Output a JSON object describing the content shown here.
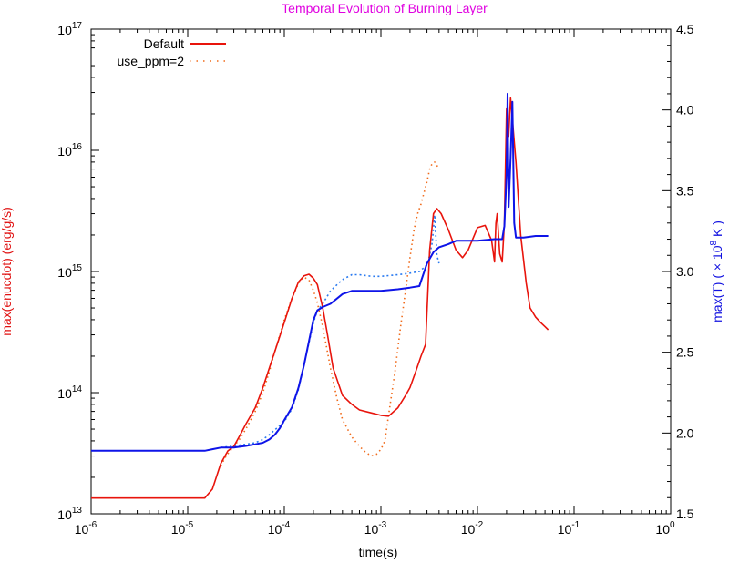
{
  "chart_data": {
    "type": "line",
    "title": "Temporal Evolution of Burning Layer",
    "xlabel": "time(s)",
    "ylabel": "max(enucdot) (erg/g/s)",
    "y2label_main": "max(T) ( × 10",
    "y2label_exp": "8",
    "y2label_tail": " K )",
    "xscale": "log",
    "yscale": "log",
    "xlim": [
      1e-06,
      1
    ],
    "ylim": [
      10000000000000.0,
      1e+17
    ],
    "y2lim": [
      1.5,
      4.5
    ],
    "x_ticks": [
      {
        "base": "10",
        "exp": "-6",
        "v": -6
      },
      {
        "base": "10",
        "exp": "-5",
        "v": -5
      },
      {
        "base": "10",
        "exp": "-4",
        "v": -4
      },
      {
        "base": "10",
        "exp": "-3",
        "v": -3
      },
      {
        "base": "10",
        "exp": "-2",
        "v": -2
      },
      {
        "base": "10",
        "exp": "-1",
        "v": -1
      },
      {
        "base": "10",
        "exp": "0",
        "v": 0
      }
    ],
    "y_ticks": [
      {
        "base": "10",
        "exp": "13",
        "v": 13
      },
      {
        "base": "10",
        "exp": "14",
        "v": 14
      },
      {
        "base": "10",
        "exp": "15",
        "v": 15
      },
      {
        "base": "10",
        "exp": "16",
        "v": 16
      },
      {
        "base": "10",
        "exp": "17",
        "v": 17
      }
    ],
    "y2_ticks": [
      "1.5",
      "2.0",
      "2.5",
      "3.0",
      "3.5",
      "4.0",
      "4.5"
    ],
    "legend": {
      "placement": "top-left",
      "entries": [
        {
          "label": "Default",
          "style": "solid",
          "color": "#e8140c"
        },
        {
          "label": "use_ppm=2",
          "style": "dotted",
          "color": "#f06a1a"
        }
      ]
    },
    "colors": {
      "title": "#e000e0",
      "ylabel": "#e01010",
      "y2label": "#1010e0",
      "enuc_default": "#e8140c",
      "enuc_ppm": "#f06a1a",
      "temp_default": "#0e14e8",
      "temp_ppm": "#2a7af0"
    },
    "series": [
      {
        "name": "Default",
        "quantity": "max(enucdot)",
        "axis": "left",
        "x": [
          1e-06,
          5e-06,
          1.5e-05,
          1.8e-05,
          2.2e-05,
          2.6e-05,
          3e-05,
          3.5e-05,
          4e-05,
          5e-05,
          6e-05,
          7e-05,
          8e-05,
          0.0001,
          0.00012,
          0.00014,
          0.00016,
          0.00018,
          0.0002,
          0.00022,
          0.00025,
          0.00028,
          0.00032,
          0.0004,
          0.0005,
          0.0006,
          0.0008,
          0.001,
          0.0012,
          0.0015,
          0.0018,
          0.002,
          0.0023,
          0.0026,
          0.0029,
          0.0032,
          0.0035,
          0.0038,
          0.0042,
          0.005,
          0.006,
          0.007,
          0.008,
          0.01,
          0.012,
          0.014,
          0.015,
          0.0155,
          0.016,
          0.017,
          0.018,
          0.019,
          0.02,
          0.021,
          0.022,
          0.023,
          0.025,
          0.028,
          0.032,
          0.035,
          0.04,
          0.045,
          0.05,
          0.054
        ],
        "y": [
          13500000000000.0,
          13500000000000.0,
          13500000000000.0,
          16000000000000.0,
          26000000000000.0,
          33000000000000.0,
          36000000000000.0,
          45000000000000.0,
          55000000000000.0,
          75000000000000.0,
          110000000000000.0,
          160000000000000.0,
          220000000000000.0,
          380000000000000.0,
          600000000000000.0,
          820000000000000.0,
          920000000000000.0,
          950000000000000.0,
          880000000000000.0,
          780000000000000.0,
          500000000000000.0,
          300000000000000.0,
          160000000000000.0,
          95000000000000.0,
          80000000000000.0,
          72000000000000.0,
          68000000000000.0,
          65000000000000.0,
          64000000000000.0,
          75000000000000.0,
          95000000000000.0,
          110000000000000.0,
          150000000000000.0,
          200000000000000.0,
          250000000000000.0,
          1500000000000000.0,
          3000000000000000.0,
          3300000000000000.0,
          3000000000000000.0,
          2200000000000000.0,
          1500000000000000.0,
          1300000000000000.0,
          1500000000000000.0,
          2300000000000000.0,
          2400000000000000.0,
          1800000000000000.0,
          1200000000000000.0,
          2500000000000000.0,
          3000000000000000.0,
          1400000000000000.0,
          1200000000000000.0,
          2500000000000000.0,
          2.2e+16,
          1.3e+16,
          2.7e+16,
          1.8e+16,
          8000000000000000.0,
          2000000000000000.0,
          800000000000000.0,
          500000000000000.0,
          420000000000000.0,
          380000000000000.0,
          350000000000000.0,
          330000000000000.0
        ]
      },
      {
        "name": "use_ppm=2",
        "quantity": "max(enucdot)",
        "axis": "left",
        "x": [
          2.2e-05,
          2.5e-05,
          3e-05,
          3.5e-05,
          4e-05,
          5e-05,
          6e-05,
          7e-05,
          8e-05,
          0.0001,
          0.00012,
          0.00014,
          0.00016,
          0.00018,
          0.0002,
          0.00022,
          0.00025,
          0.0003,
          0.00035,
          0.0004,
          0.0005,
          0.0006,
          0.0007,
          0.0008,
          0.0009,
          0.001,
          0.0011,
          0.0012,
          0.0014,
          0.0016,
          0.0018,
          0.002,
          0.0022,
          0.0024,
          0.0026,
          0.0028,
          0.003,
          0.0032,
          0.0034,
          0.0036,
          0.0038,
          0.004
        ],
        "y": [
          25000000000000.0,
          30000000000000.0,
          36000000000000.0,
          42000000000000.0,
          50000000000000.0,
          70000000000000.0,
          100000000000000.0,
          150000000000000.0,
          220000000000000.0,
          400000000000000.0,
          600000000000000.0,
          800000000000000.0,
          900000000000000.0,
          850000000000000.0,
          700000000000000.0,
          550000000000000.0,
          350000000000000.0,
          160000000000000.0,
          90000000000000.0,
          60000000000000.0,
          43000000000000.0,
          36000000000000.0,
          32000000000000.0,
          30000000000000.0,
          31000000000000.0,
          34000000000000.0,
          40000000000000.0,
          65000000000000.0,
          150000000000000.0,
          350000000000000.0,
          700000000000000.0,
          1300000000000000.0,
          2200000000000000.0,
          3000000000000000.0,
          3600000000000000.0,
          4500000000000000.0,
          5500000000000000.0,
          7000000000000000.0,
          7800000000000000.0,
          8000000000000000.0,
          7500000000000000.0,
          7000000000000000.0
        ]
      },
      {
        "name": "Default",
        "quantity": "max(T)",
        "axis": "right",
        "x": [
          1e-06,
          5e-06,
          1.5e-05,
          1.8e-05,
          2.2e-05,
          3e-05,
          4e-05,
          5e-05,
          6e-05,
          7e-05,
          8e-05,
          9e-05,
          0.0001,
          0.00012,
          0.00014,
          0.00016,
          0.00018,
          0.0002,
          0.00022,
          0.00025,
          0.0003,
          0.0004,
          0.0005,
          0.0007,
          0.001,
          0.0015,
          0.002,
          0.0025,
          0.003,
          0.0035,
          0.004,
          0.005,
          0.006,
          0.008,
          0.01,
          0.015,
          0.018,
          0.019,
          0.02,
          0.0205,
          0.021,
          0.022,
          0.023,
          0.024,
          0.025,
          0.03,
          0.04,
          0.05,
          0.054
        ],
        "y": [
          1.89,
          1.89,
          1.89,
          1.9,
          1.91,
          1.91,
          1.92,
          1.93,
          1.94,
          1.96,
          1.99,
          2.03,
          2.08,
          2.16,
          2.28,
          2.42,
          2.57,
          2.7,
          2.76,
          2.78,
          2.8,
          2.86,
          2.88,
          2.88,
          2.88,
          2.89,
          2.9,
          2.91,
          3.05,
          3.12,
          3.15,
          3.17,
          3.19,
          3.19,
          3.19,
          3.2,
          3.2,
          3.28,
          3.6,
          4.1,
          3.4,
          3.7,
          4.05,
          3.3,
          3.21,
          3.21,
          3.22,
          3.22,
          3.22
        ]
      },
      {
        "name": "use_ppm=2",
        "quantity": "max(T)",
        "axis": "right",
        "x": [
          2.2e-05,
          3e-05,
          4e-05,
          5e-05,
          6e-05,
          7e-05,
          8e-05,
          0.0001,
          0.00012,
          0.00014,
          0.00016,
          0.00018,
          0.0002,
          0.00022,
          0.00025,
          0.0003,
          0.0004,
          0.0005,
          0.0006,
          0.0008,
          0.001,
          0.0015,
          0.002,
          0.0025,
          0.003,
          0.0032,
          0.0034,
          0.0036,
          0.0038,
          0.004
        ],
        "y": [
          1.91,
          1.92,
          1.93,
          1.94,
          1.96,
          1.99,
          2.02,
          2.07,
          2.15,
          2.27,
          2.42,
          2.56,
          2.68,
          2.76,
          2.8,
          2.88,
          2.95,
          2.98,
          2.98,
          2.97,
          2.97,
          2.98,
          2.99,
          3.0,
          3.04,
          3.1,
          3.18,
          3.35,
          3.1,
          3.05
        ]
      }
    ]
  }
}
